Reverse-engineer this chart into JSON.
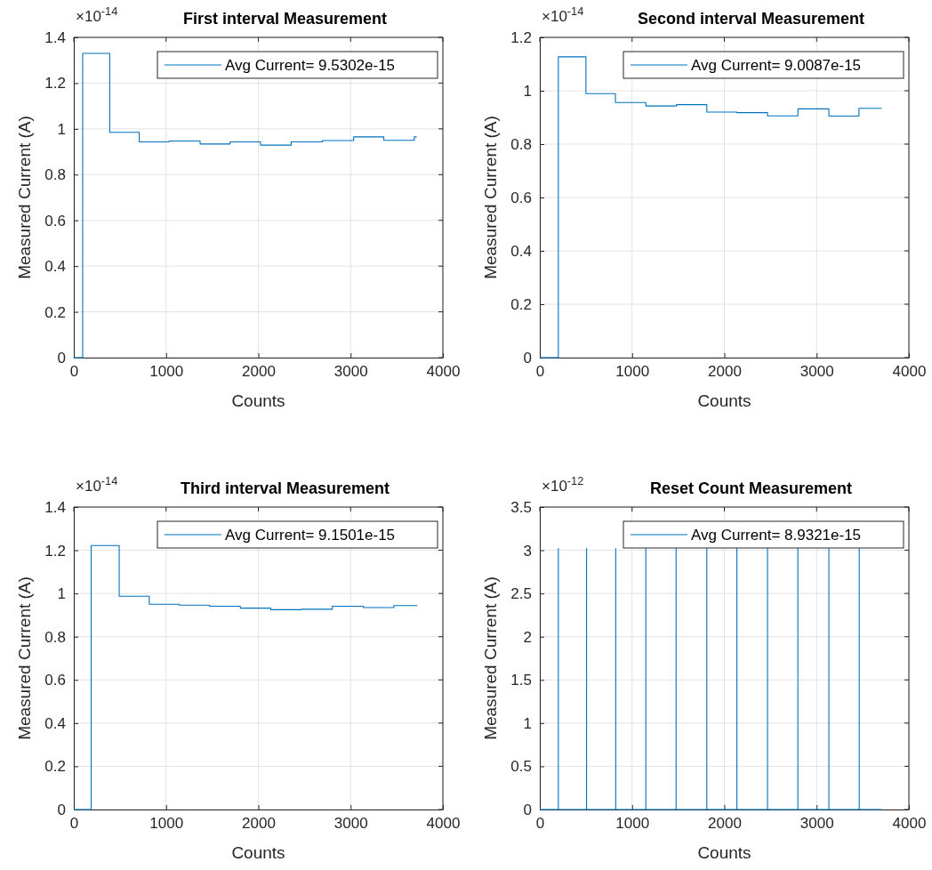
{
  "chart_data": [
    {
      "type": "step",
      "title": "First interval Measurement",
      "xlabel": "Counts",
      "ylabel": "Measured Current (A)",
      "annotations": [
        "×10$^{-14}$"
      ],
      "xlim": [
        0,
        4000
      ],
      "xticks": [
        0,
        1000,
        2000,
        3000,
        4000
      ],
      "ylim": [
        0,
        1.4
      ],
      "yticks": [
        0,
        0.2,
        0.4,
        0.6,
        0.8,
        1,
        1.2,
        1.4
      ],
      "grid": true,
      "legend": "top right",
      "series": [
        {
          "name": "Avg Current= 9.5302e-15",
          "color": "#0072bd",
          "x": [
            0,
            96,
            389,
            709,
            1033,
            1369,
            1693,
            2023,
            2356,
            2693,
            3033,
            3360,
            3690,
            3716
          ],
          "values": [
            0,
            1.33,
            0.985,
            0.943,
            0.947,
            0.934,
            0.943,
            0.929,
            0.943,
            0.949,
            0.965,
            0.95,
            0.965,
            0.965
          ]
        }
      ]
    },
    {
      "type": "step",
      "title": "Second interval Measurement",
      "xlabel": "Counts",
      "ylabel": "Measured Current (A)",
      "annotations": [
        "×10$^{-14}$"
      ],
      "xlim": [
        0,
        4000
      ],
      "xticks": [
        0,
        1000,
        2000,
        3000,
        4000
      ],
      "ylim": [
        0,
        1.2
      ],
      "yticks": [
        0,
        0.2,
        0.4,
        0.6,
        0.8,
        1,
        1.2
      ],
      "grid": true,
      "legend": "top right",
      "series": [
        {
          "name": "Avg Current= 9.0087e-15",
          "color": "#0072bd",
          "x": [
            0,
            201,
            500,
            819,
            1149,
            1481,
            1810,
            2136,
            2468,
            2797,
            3133,
            3459,
            3706
          ],
          "values": [
            0,
            1.127,
            0.989,
            0.956,
            0.943,
            0.948,
            0.92,
            0.918,
            0.906,
            0.932,
            0.905,
            0.934,
            0.934
          ]
        }
      ]
    },
    {
      "type": "step",
      "title": "Third interval Measurement",
      "xlabel": "Counts",
      "ylabel": "Measured Current (A)",
      "annotations": [
        "×10$^{-14}$"
      ],
      "xlim": [
        0,
        4000
      ],
      "xticks": [
        0,
        1000,
        2000,
        3000,
        4000
      ],
      "ylim": [
        0,
        1.4
      ],
      "yticks": [
        0,
        0.2,
        0.4,
        0.6,
        0.8,
        1,
        1.2,
        1.4
      ],
      "grid": true,
      "legend": "top right",
      "series": [
        {
          "name": "Avg Current= 9.1501e-15",
          "color": "#0072bd",
          "x": [
            0,
            188,
            492,
            818,
            1142,
            1472,
            1805,
            2135,
            2468,
            2802,
            3139,
            3468,
            3723
          ],
          "values": [
            0,
            1.222,
            0.987,
            0.95,
            0.946,
            0.941,
            0.932,
            0.925,
            0.927,
            0.941,
            0.935,
            0.944,
            0.944
          ]
        }
      ]
    },
    {
      "type": "line",
      "title": "Reset Count Measurement",
      "xlabel": "Counts",
      "ylabel": "Measured Current (A)",
      "annotations": [
        "×10$^{-12}$"
      ],
      "xlim": [
        0,
        4000
      ],
      "xticks": [
        0,
        1000,
        2000,
        3000,
        4000
      ],
      "ylim": [
        0,
        3.5
      ],
      "yticks": [
        0,
        0.5,
        1,
        1.5,
        2,
        2.5,
        3,
        3.5
      ],
      "grid": true,
      "legend": "top right",
      "series": [
        {
          "name": "Avg Current= 8.9321e-15",
          "color": "#0072bd",
          "x": [
            0,
            201,
            201,
            201,
            507,
            507,
            507,
            823,
            823,
            823,
            1149,
            1149,
            1149,
            1477,
            1477,
            1477,
            1810,
            1810,
            1810,
            2136,
            2136,
            2136,
            2468,
            2468,
            2468,
            2797,
            2797,
            2797,
            3133,
            3133,
            3133,
            3462,
            3462,
            3462,
            3706
          ],
          "values": [
            0,
            0,
            3.02,
            0,
            0,
            3.02,
            0,
            0,
            3.02,
            0,
            0,
            3.02,
            0,
            0,
            3.02,
            0,
            0,
            3.02,
            0,
            0,
            3.02,
            0,
            0,
            3.02,
            0,
            0,
            3.02,
            0,
            0,
            3.02,
            0,
            0,
            3.02,
            0,
            0
          ]
        }
      ]
    }
  ]
}
